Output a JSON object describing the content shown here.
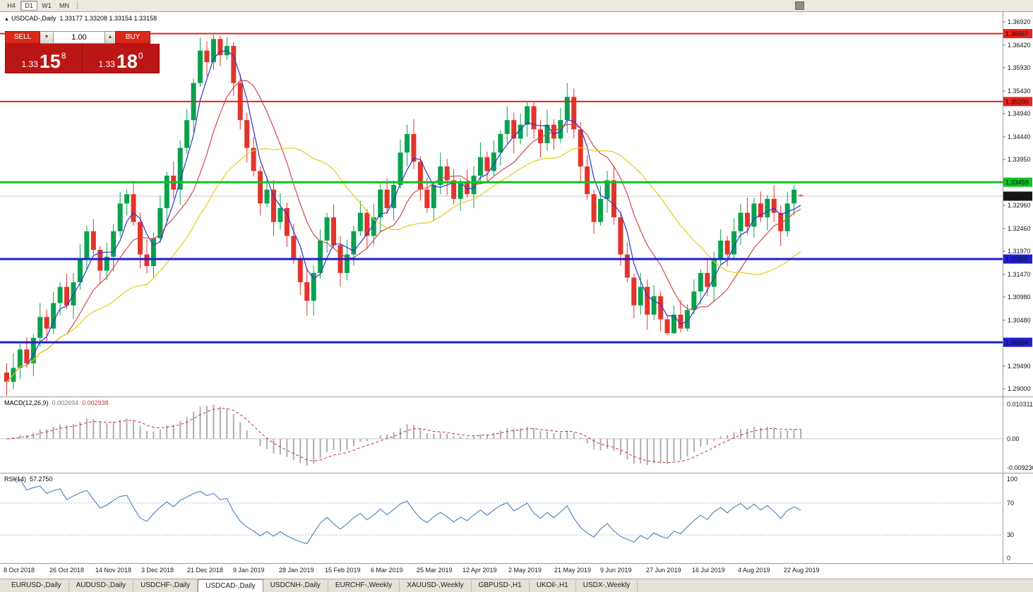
{
  "colors": {
    "accent_red": "#e8231d",
    "accent_green": "#0cc421",
    "accent_blue": "#1f1fd0",
    "current_badge": "#161616"
  },
  "toolbar": {
    "timeframes": [
      {
        "label": "H4",
        "active": false
      },
      {
        "label": "D1",
        "active": true
      },
      {
        "label": "W1",
        "active": false
      },
      {
        "label": "MN",
        "active": false
      }
    ]
  },
  "chart": {
    "header": {
      "symbol": "USDCAD-,Daily",
      "ohlc": "1.33177 1.33208 1.33154 1.33158"
    },
    "trade": {
      "sell_label": "SELL",
      "buy_label": "BUY",
      "volume": "1.00",
      "sell": {
        "prefix": "1.33",
        "pips": "15",
        "pipette": "8"
      },
      "buy": {
        "prefix": "1.33",
        "pips": "18",
        "pipette": "0"
      }
    },
    "current_price": {
      "value": 1.33158,
      "label": "1.33158"
    },
    "levels": [
      {
        "price": 1.36667,
        "label": "1.36667",
        "color": "#e8231d",
        "width": 2
      },
      {
        "price": 1.352,
        "label": "1.35200",
        "color": "#e8231d",
        "width": 2
      },
      {
        "price": 1.33459,
        "label": "1.33459",
        "color": "#0cc421",
        "width": 3
      },
      {
        "price": 1.31801,
        "label": "1.31801",
        "color": "#1f1fd0",
        "width": 3
      },
      {
        "price": 1.30004,
        "label": "1.30004",
        "color": "#1f1fd0",
        "width": 3
      }
    ],
    "axis_ticks": [
      "1.36920",
      "1.36420",
      "1.35930",
      "1.35430",
      "1.34940",
      "1.34440",
      "1.33950",
      "1.32960",
      "1.32460",
      "1.31970",
      "1.31470",
      "1.30980",
      "1.30480",
      "1.29990",
      "1.29490",
      "1.29000"
    ]
  },
  "macd": {
    "name": "MACD(12,26,9)",
    "value_main": "0.002694",
    "value_signal": "0.002938",
    "axis": {
      "top": "0.010311",
      "zero": "0.00",
      "bottom": "-0.0092303"
    }
  },
  "rsi": {
    "name": "RSI(14)",
    "value": "57.2750",
    "axis_labels": [
      "100",
      "70",
      "30",
      "0"
    ],
    "guides": [
      70,
      30
    ]
  },
  "tabs": [
    {
      "label": "EURUSD-,Daily",
      "active": false
    },
    {
      "label": "AUDUSD-,Daily",
      "active": false
    },
    {
      "label": "USDCHF-,Daily",
      "active": false
    },
    {
      "label": "USDCAD-,Daily",
      "active": true
    },
    {
      "label": "USDCNH-,Daily",
      "active": false
    },
    {
      "label": "EURCHF-,Weekly",
      "active": false
    },
    {
      "label": "XAUUSD-,Weekly",
      "active": false
    },
    {
      "label": "GBPUSD-,H1",
      "active": false
    },
    {
      "label": "UKOil-,H1",
      "active": false
    },
    {
      "label": "USDX-,Weekly",
      "active": false
    }
  ],
  "chart_data": {
    "type": "candlestick",
    "title": "USDCAD-,Daily",
    "y_range": [
      1.29,
      1.3692
    ],
    "x_labels": [
      "8 Oct 2018",
      "26 Oct 2018",
      "14 Nov 2018",
      "3 Dec 2018",
      "21 Dec 2018",
      "9 Jan 2019",
      "28 Jan 2019",
      "15 Feb 2019",
      "6 Mar 2019",
      "25 Mar 2019",
      "12 Apr 2019",
      "2 May 2019",
      "21 May 2019",
      "9 Jun 2019",
      "27 Jun 2019",
      "16 Jul 2019",
      "4 Aug 2019",
      "22 Aug 2019"
    ],
    "colors": {
      "up": "#0aa14e",
      "down": "#e2342c"
    },
    "moving_averages": [
      {
        "name": "ma-fast-line",
        "period": 4,
        "color": "#2f33cf"
      },
      {
        "name": "ma-mid-line",
        "period": 10,
        "color": "#cd4a4a"
      },
      {
        "name": "ma-slow-line",
        "period": 22,
        "color": "#e7cb15"
      }
    ],
    "candles": [
      [
        1.2935,
        1.2955,
        1.2885,
        1.2915
      ],
      [
        1.2915,
        1.2977,
        1.2899,
        1.2945
      ],
      [
        1.2945,
        1.2997,
        1.2921,
        1.2985
      ],
      [
        1.2985,
        1.3011,
        1.2945,
        1.2955
      ],
      [
        1.2955,
        1.3018,
        1.2927,
        1.301
      ],
      [
        1.301,
        1.3085,
        1.299,
        1.3055
      ],
      [
        1.3055,
        1.3071,
        1.2998,
        1.303
      ],
      [
        1.303,
        1.3109,
        1.3018,
        1.3085
      ],
      [
        1.3085,
        1.313,
        1.3059,
        1.312
      ],
      [
        1.312,
        1.3148,
        1.3072,
        1.308
      ],
      [
        1.308,
        1.315,
        1.305,
        1.313
      ],
      [
        1.313,
        1.3212,
        1.3114,
        1.318
      ],
      [
        1.318,
        1.3252,
        1.3156,
        1.324
      ],
      [
        1.324,
        1.3266,
        1.319,
        1.32
      ],
      [
        1.32,
        1.3208,
        1.3127,
        1.3155
      ],
      [
        1.3155,
        1.3215,
        1.3135,
        1.3185
      ],
      [
        1.3185,
        1.3256,
        1.3153,
        1.324
      ],
      [
        1.324,
        1.3324,
        1.3228,
        1.33
      ],
      [
        1.33,
        1.333,
        1.3274,
        1.332
      ],
      [
        1.332,
        1.3348,
        1.3252,
        1.326
      ],
      [
        1.326,
        1.328,
        1.316,
        1.319
      ],
      [
        1.319,
        1.3222,
        1.3149,
        1.3165
      ],
      [
        1.3165,
        1.3237,
        1.3141,
        1.3225
      ],
      [
        1.3225,
        1.3316,
        1.3215,
        1.329
      ],
      [
        1.329,
        1.3368,
        1.3262,
        1.336
      ],
      [
        1.336,
        1.339,
        1.331,
        1.333
      ],
      [
        1.333,
        1.3436,
        1.3298,
        1.342
      ],
      [
        1.342,
        1.3504,
        1.3408,
        1.348
      ],
      [
        1.348,
        1.357,
        1.3454,
        1.356
      ],
      [
        1.356,
        1.3658,
        1.3552,
        1.363
      ],
      [
        1.363,
        1.365,
        1.3575,
        1.3605
      ],
      [
        1.3605,
        1.3664,
        1.3589,
        1.3655
      ],
      [
        1.3655,
        1.3662,
        1.3596,
        1.362
      ],
      [
        1.362,
        1.366,
        1.361,
        1.364
      ],
      [
        1.364,
        1.3648,
        1.3532,
        1.356
      ],
      [
        1.356,
        1.358,
        1.346,
        1.348
      ],
      [
        1.348,
        1.3496,
        1.3388,
        1.342
      ],
      [
        1.342,
        1.3444,
        1.3358,
        1.337
      ],
      [
        1.337,
        1.338,
        1.3274,
        1.33
      ],
      [
        1.33,
        1.3358,
        1.3292,
        1.333
      ],
      [
        1.333,
        1.335,
        1.323,
        1.326
      ],
      [
        1.326,
        1.3322,
        1.3244,
        1.329
      ],
      [
        1.329,
        1.3302,
        1.3206,
        1.323
      ],
      [
        1.323,
        1.3256,
        1.317,
        1.318
      ],
      [
        1.318,
        1.3188,
        1.3102,
        1.313
      ],
      [
        1.313,
        1.316,
        1.3058,
        1.309
      ],
      [
        1.309,
        1.3166,
        1.3058,
        1.315
      ],
      [
        1.315,
        1.3244,
        1.3138,
        1.322
      ],
      [
        1.322,
        1.328,
        1.3194,
        1.327
      ],
      [
        1.327,
        1.3298,
        1.3202,
        1.321
      ],
      [
        1.321,
        1.323,
        1.312,
        1.315
      ],
      [
        1.315,
        1.3222,
        1.3134,
        1.319
      ],
      [
        1.319,
        1.3252,
        1.3166,
        1.324
      ],
      [
        1.324,
        1.3306,
        1.323,
        1.328
      ],
      [
        1.328,
        1.3288,
        1.3202,
        1.323
      ],
      [
        1.323,
        1.33,
        1.321,
        1.327
      ],
      [
        1.327,
        1.3346,
        1.3238,
        1.333
      ],
      [
        1.333,
        1.3354,
        1.3278,
        1.329
      ],
      [
        1.329,
        1.335,
        1.3264,
        1.334
      ],
      [
        1.334,
        1.3438,
        1.3332,
        1.341
      ],
      [
        1.341,
        1.347,
        1.338,
        1.345
      ],
      [
        1.345,
        1.3482,
        1.3374,
        1.339
      ],
      [
        1.339,
        1.3402,
        1.3306,
        1.333
      ],
      [
        1.333,
        1.3356,
        1.328,
        1.329
      ],
      [
        1.329,
        1.3348,
        1.3262,
        1.334
      ],
      [
        1.334,
        1.341,
        1.332,
        1.338
      ],
      [
        1.338,
        1.3396,
        1.3318,
        1.335
      ],
      [
        1.335,
        1.3374,
        1.3298,
        1.331
      ],
      [
        1.331,
        1.3355,
        1.3284,
        1.3345
      ],
      [
        1.3345,
        1.3373,
        1.3312,
        1.332
      ],
      [
        1.332,
        1.338,
        1.329,
        1.336
      ],
      [
        1.336,
        1.3432,
        1.3344,
        1.34
      ],
      [
        1.34,
        1.3412,
        1.3346,
        1.337
      ],
      [
        1.337,
        1.3436,
        1.336,
        1.341
      ],
      [
        1.341,
        1.3458,
        1.3382,
        1.345
      ],
      [
        1.345,
        1.351,
        1.343,
        1.348
      ],
      [
        1.348,
        1.3496,
        1.3408,
        1.344
      ],
      [
        1.344,
        1.3494,
        1.3428,
        1.347
      ],
      [
        1.347,
        1.352,
        1.3444,
        1.351
      ],
      [
        1.351,
        1.3518,
        1.344,
        1.346
      ],
      [
        1.346,
        1.348,
        1.34,
        1.343
      ],
      [
        1.343,
        1.3502,
        1.3414,
        1.347
      ],
      [
        1.347,
        1.3482,
        1.3416,
        1.344
      ],
      [
        1.344,
        1.3506,
        1.343,
        1.348
      ],
      [
        1.348,
        1.356,
        1.3452,
        1.353
      ],
      [
        1.353,
        1.3548,
        1.344,
        1.346
      ],
      [
        1.346,
        1.3476,
        1.3348,
        1.338
      ],
      [
        1.338,
        1.3404,
        1.3308,
        1.332
      ],
      [
        1.332,
        1.333,
        1.3234,
        1.326
      ],
      [
        1.326,
        1.3338,
        1.3252,
        1.331
      ],
      [
        1.331,
        1.337,
        1.328,
        1.335
      ],
      [
        1.335,
        1.3382,
        1.3254,
        1.327
      ],
      [
        1.327,
        1.3282,
        1.3166,
        1.319
      ],
      [
        1.319,
        1.3216,
        1.313,
        1.314
      ],
      [
        1.314,
        1.3148,
        1.3052,
        1.308
      ],
      [
        1.308,
        1.315,
        1.306,
        1.312
      ],
      [
        1.312,
        1.3136,
        1.3028,
        1.306
      ],
      [
        1.306,
        1.3124,
        1.3048,
        1.31
      ],
      [
        1.31,
        1.311,
        1.3024,
        1.305
      ],
      [
        1.305,
        1.306,
        1.3016,
        1.302
      ],
      [
        1.302,
        1.308,
        1.3018,
        1.306
      ],
      [
        1.306,
        1.3092,
        1.3022,
        1.303
      ],
      [
        1.303,
        1.3082,
        1.3024,
        1.307
      ],
      [
        1.307,
        1.3136,
        1.306,
        1.311
      ],
      [
        1.311,
        1.3158,
        1.3082,
        1.315
      ],
      [
        1.315,
        1.318,
        1.31,
        1.312
      ],
      [
        1.312,
        1.3196,
        1.3088,
        1.318
      ],
      [
        1.318,
        1.3244,
        1.3168,
        1.322
      ],
      [
        1.322,
        1.323,
        1.3164,
        1.319
      ],
      [
        1.319,
        1.3268,
        1.3182,
        1.324
      ],
      [
        1.324,
        1.33,
        1.321,
        1.328
      ],
      [
        1.328,
        1.3312,
        1.3234,
        1.325
      ],
      [
        1.325,
        1.3312,
        1.3226,
        1.33
      ],
      [
        1.33,
        1.3326,
        1.326,
        1.327
      ],
      [
        1.327,
        1.3318,
        1.3242,
        1.331
      ],
      [
        1.331,
        1.334,
        1.326,
        1.328
      ],
      [
        1.328,
        1.3296,
        1.3208,
        1.324
      ],
      [
        1.324,
        1.3324,
        1.3228,
        1.33
      ],
      [
        1.33,
        1.334,
        1.3274,
        1.333
      ],
      [
        1.33177,
        1.33208,
        1.33154,
        1.33158
      ]
    ]
  }
}
